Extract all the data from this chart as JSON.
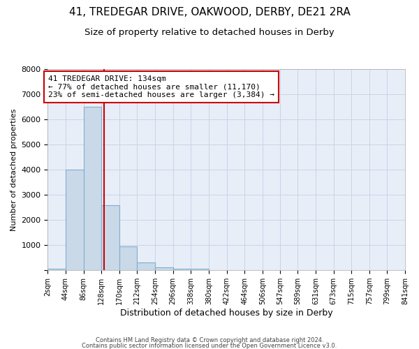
{
  "title1": "41, TREDEGAR DRIVE, OAKWOOD, DERBY, DE21 2RA",
  "title2": "Size of property relative to detached houses in Derby",
  "xlabel": "Distribution of detached houses by size in Derby",
  "ylabel": "Number of detached properties",
  "bin_edges": [
    2,
    44,
    86,
    128,
    170,
    212,
    254,
    296,
    338,
    380,
    422,
    464,
    506,
    547,
    589,
    631,
    673,
    715,
    757,
    799,
    841
  ],
  "bar_heights": [
    75,
    4000,
    6500,
    2600,
    950,
    320,
    110,
    75,
    50,
    10,
    5,
    2,
    1,
    0,
    0,
    0,
    0,
    0,
    0,
    0
  ],
  "bar_color": "#c9d9e8",
  "bar_edgecolor": "#7fafd0",
  "bar_linewidth": 0.8,
  "property_line_x": 134,
  "property_line_color": "#cc0000",
  "annotation_text": "41 TREDEGAR DRIVE: 134sqm\n← 77% of detached houses are smaller (11,170)\n23% of semi-detached houses are larger (3,384) →",
  "annotation_box_color": "#cc0000",
  "ylim": [
    0,
    8000
  ],
  "yticks": [
    0,
    1000,
    2000,
    3000,
    4000,
    5000,
    6000,
    7000,
    8000
  ],
  "grid_color": "#c8d4e8",
  "bg_color": "#e8eef8",
  "title1_fontsize": 11,
  "title2_fontsize": 9.5,
  "footnote1": "Contains HM Land Registry data © Crown copyright and database right 2024.",
  "footnote2": "Contains public sector information licensed under the Open Government Licence v3.0."
}
